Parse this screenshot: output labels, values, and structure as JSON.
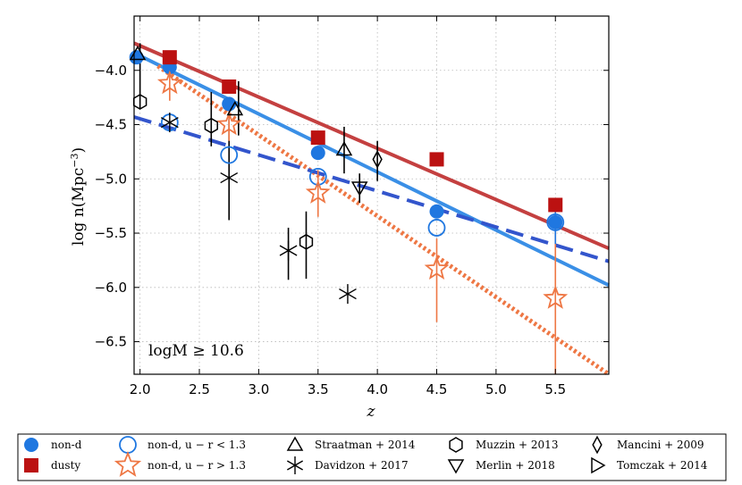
{
  "chart_data": {
    "type": "scatter",
    "title": "",
    "xlabel": "z",
    "ylabel": "log n(Mpc^-3)",
    "ylabel_parts": {
      "main": "log n(Mpc",
      "sup": "−3",
      "close": ")"
    },
    "xlim": [
      1.95,
      5.95
    ],
    "ylim": [
      -6.8,
      -3.5
    ],
    "grid": true,
    "annotation": "logM ≥ 10.6",
    "xticks": [
      "2.0",
      "2.5",
      "3.0",
      "3.5",
      "4.0",
      "4.5",
      "5.0",
      "5.5"
    ],
    "yticks": [
      "-4.0",
      "-4.5",
      "-5.0",
      "-5.5",
      "-6.0",
      "-6.5"
    ],
    "colors": {
      "nond": "#1f77e0",
      "dusty": "#bb1111",
      "nond_line": "#3a8fe6",
      "dusty_line": "#c44040",
      "orange": "#ee7744",
      "dashed": "#3355cc",
      "black": "#000000"
    },
    "fit_lines": [
      {
        "name": "dusty fit",
        "style": "solid",
        "color": "#c44040",
        "x": [
          1.95,
          5.95
        ],
        "y": [
          -3.75,
          -5.64
        ]
      },
      {
        "name": "non-d fit",
        "style": "solid",
        "color": "#3a8fe6",
        "x": [
          1.95,
          5.95
        ],
        "y": [
          -3.84,
          -5.98
        ]
      },
      {
        "name": "non-d u-r>1.3 fit",
        "style": "dotted",
        "color": "#ee7744",
        "x": [
          2.15,
          5.95
        ],
        "y": [
          -3.96,
          -6.8
        ]
      },
      {
        "name": "non-d u-r<1.3 fit",
        "style": "dashed",
        "color": "#3355cc",
        "x": [
          1.95,
          5.95
        ],
        "y": [
          -4.43,
          -5.76
        ]
      }
    ],
    "series": [
      {
        "name": "non-d",
        "marker": "filled-circle",
        "color": "#1f77e0",
        "x": [
          1.97,
          2.25,
          2.75,
          3.5,
          4.5,
          5.5
        ],
        "y": [
          -3.88,
          -3.97,
          -4.31,
          -4.76,
          -5.3,
          -5.4
        ]
      },
      {
        "name": "dusty",
        "marker": "filled-square",
        "color": "#bb1111",
        "x": [
          2.25,
          2.75,
          3.5,
          4.5,
          5.5
        ],
        "y": [
          -3.88,
          -4.15,
          -4.62,
          -4.82,
          -5.24
        ]
      },
      {
        "name": "non-d, u − r < 1.3",
        "marker": "open-circle",
        "color": "#1f77e0",
        "x": [
          2.25,
          2.75,
          3.5,
          4.5,
          5.5
        ],
        "y": [
          -4.48,
          -4.78,
          -4.98,
          -5.45,
          -5.4
        ]
      },
      {
        "name": "non-d, u − r > 1.3",
        "marker": "open-star",
        "color": "#ee7744",
        "x": [
          2.25,
          2.75,
          3.5,
          4.5,
          5.5
        ],
        "y": [
          -4.12,
          -4.5,
          -5.13,
          -5.83,
          -6.1
        ]
      },
      {
        "name": "Straatman + 2014",
        "marker": "triangle-up",
        "color": "#000000",
        "x": [
          1.98,
          2.8,
          3.72
        ],
        "y": [
          -3.85,
          -4.36,
          -4.73
        ]
      },
      {
        "name": "Davidzon + 2017",
        "marker": "asterisk",
        "color": "#000000",
        "x": [
          2.25,
          2.75,
          3.25,
          3.75
        ],
        "y": [
          -4.48,
          -4.99,
          -5.66,
          -6.06
        ]
      },
      {
        "name": "Muzzin + 2013",
        "marker": "hexagon",
        "color": "#000000",
        "x": [
          2.0,
          2.6,
          3.4
        ],
        "y": [
          -4.29,
          -4.51,
          -5.58
        ]
      },
      {
        "name": "Merlin + 2018",
        "marker": "triangle-down",
        "color": "#000000",
        "x": [
          3.85
        ],
        "y": [
          -5.08
        ]
      },
      {
        "name": "Mancini + 2009",
        "marker": "diamond",
        "color": "#000000",
        "x": [
          4.0
        ],
        "y": [
          -4.82
        ]
      },
      {
        "name": "Tomczak + 2014",
        "marker": "triangle-right",
        "color": "#000000",
        "x": [],
        "y": []
      }
    ],
    "error_bars": [
      {
        "color": "#000000",
        "x": 2.0,
        "y1": -3.75,
        "y2": -4.35
      },
      {
        "color": "#000000",
        "x": 2.6,
        "y1": -4.2,
        "y2": -4.7
      },
      {
        "color": "#000000",
        "x": 2.75,
        "y1": -4.45,
        "y2": -5.38
      },
      {
        "color": "#000000",
        "x": 2.83,
        "y1": -4.1,
        "y2": -4.6
      },
      {
        "color": "#000000",
        "x": 3.25,
        "y1": -5.45,
        "y2": -5.93
      },
      {
        "color": "#000000",
        "x": 3.4,
        "y1": -5.3,
        "y2": -5.92
      },
      {
        "color": "#000000",
        "x": 3.72,
        "y1": -4.52,
        "y2": -4.95
      },
      {
        "color": "#000000",
        "x": 3.85,
        "y1": -4.95,
        "y2": -5.22
      },
      {
        "color": "#000000",
        "x": 4.0,
        "y1": -4.65,
        "y2": -5.02
      },
      {
        "color": "#ee7744",
        "x": 2.25,
        "y1": -3.98,
        "y2": -4.28
      },
      {
        "color": "#ee7744",
        "x": 2.75,
        "y1": -4.35,
        "y2": -4.65
      },
      {
        "color": "#ee7744",
        "x": 3.5,
        "y1": -4.92,
        "y2": -5.35
      },
      {
        "color": "#ee7744",
        "x": 4.5,
        "y1": -5.55,
        "y2": -6.32
      },
      {
        "color": "#ee7744",
        "x": 5.5,
        "y1": -5.3,
        "y2": -6.8
      },
      {
        "color": "#1f77e0",
        "x": 5.5,
        "y1": -5.25,
        "y2": -5.6
      }
    ],
    "legend": {
      "placement": "bottom",
      "entries": [
        {
          "label": "non-d",
          "marker": "filled-circle",
          "color": "#1f77e0"
        },
        {
          "label": "dusty",
          "marker": "filled-square",
          "color": "#bb1111"
        },
        {
          "label": "non-d, u − r < 1.3",
          "marker": "open-circle",
          "color": "#1f77e0"
        },
        {
          "label": "non-d, u − r > 1.3",
          "marker": "open-star",
          "color": "#ee7744"
        },
        {
          "label": "Straatman + 2014",
          "marker": "triangle-up",
          "color": "#000000"
        },
        {
          "label": "Davidzon + 2017",
          "marker": "asterisk",
          "color": "#000000"
        },
        {
          "label": "Muzzin + 2013",
          "marker": "hexagon",
          "color": "#000000"
        },
        {
          "label": "Merlin + 2018",
          "marker": "triangle-down",
          "color": "#000000"
        },
        {
          "label": "Mancini + 2009",
          "marker": "diamond",
          "color": "#000000"
        },
        {
          "label": "Tomczak + 2014",
          "marker": "triangle-right",
          "color": "#000000"
        }
      ]
    }
  }
}
